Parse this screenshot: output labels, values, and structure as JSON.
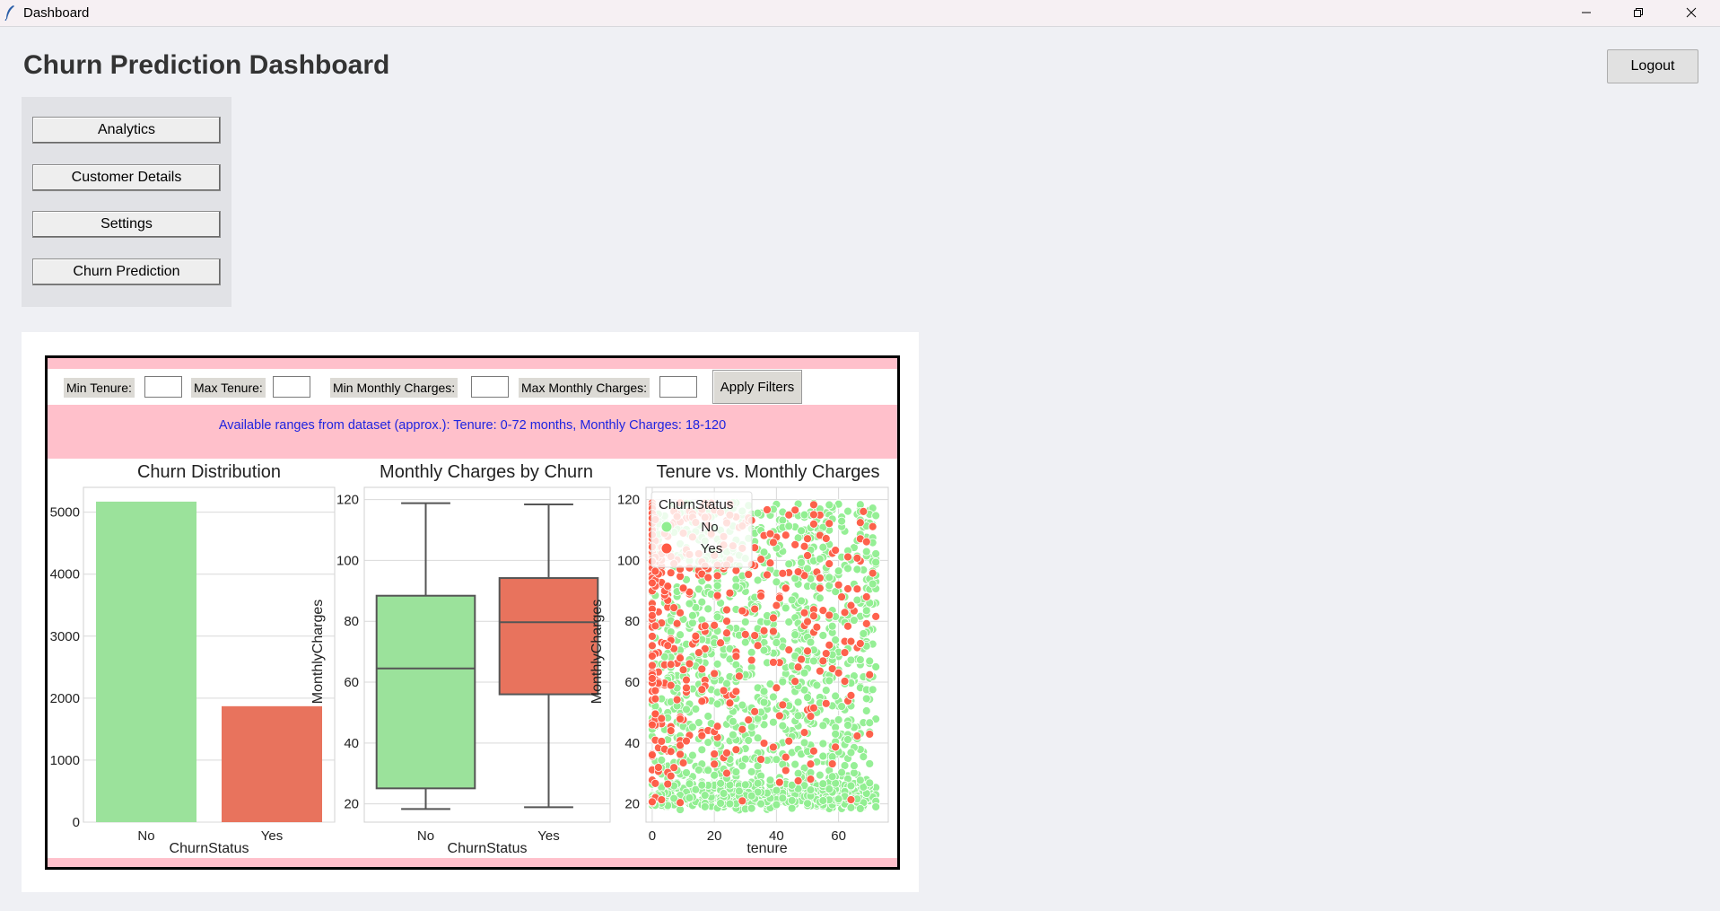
{
  "window": {
    "title": "Dashboard",
    "controls": [
      "minimize-icon",
      "restore-icon",
      "close-icon"
    ]
  },
  "header": {
    "title": "Churn Prediction Dashboard",
    "logout_label": "Logout"
  },
  "nav": {
    "items": [
      {
        "label": "Analytics"
      },
      {
        "label": "Customer Details"
      },
      {
        "label": "Settings"
      },
      {
        "label": "Churn Prediction"
      }
    ]
  },
  "filters": {
    "min_tenure_label": "Min Tenure:",
    "max_tenure_label": "Max Tenure:",
    "min_charges_label": "Min Monthly Charges:",
    "max_charges_label": "Max Monthly Charges:",
    "min_tenure_value": "",
    "max_tenure_value": "",
    "min_charges_value": "",
    "max_charges_value": "",
    "apply_label": "Apply Filters",
    "hint": "Available ranges from dataset (approx.): Tenure: 0-72 months, Monthly Charges: 18-120"
  },
  "colors": {
    "no": "#9be29b",
    "yes": "#e8735d",
    "scatter_no": "#90ee90",
    "scatter_yes": "#ff5a45",
    "frame_bg": "#ffc0cb",
    "hint_text": "#1f24e0",
    "grid": "#d9d9d9"
  },
  "chart_data": [
    {
      "type": "bar",
      "title": "Churn Distribution",
      "xlabel": "ChurnStatus",
      "ylabel": "",
      "categories": [
        "No",
        "Yes"
      ],
      "values": [
        5170,
        1870
      ],
      "ylim": [
        0,
        5400
      ],
      "yticks": [
        0,
        1000,
        2000,
        3000,
        4000,
        5000
      ],
      "ytick_labels": [
        "0",
        "1000",
        "2000",
        "3000",
        "4000",
        "5000"
      ],
      "grid": true
    },
    {
      "type": "box",
      "title": "Monthly Charges by Churn",
      "xlabel": "ChurnStatus",
      "ylabel": "MonthlyCharges",
      "categories": [
        "No",
        "Yes"
      ],
      "boxes": [
        {
          "name": "No",
          "min": 18.3,
          "q1": 25.1,
          "median": 64.5,
          "q3": 88.4,
          "max": 118.8
        },
        {
          "name": "Yes",
          "min": 18.9,
          "q1": 56.0,
          "median": 79.7,
          "q3": 94.2,
          "max": 118.4
        }
      ],
      "ylim": [
        14,
        124
      ],
      "yticks": [
        20,
        40,
        60,
        80,
        100,
        120
      ],
      "grid": true
    },
    {
      "type": "scatter",
      "title": "Tenure vs. Monthly Charges",
      "xlabel": "tenure",
      "ylabel": "MonthlyCharges",
      "xlim": [
        -2,
        76
      ],
      "ylim": [
        14,
        124
      ],
      "xticks": [
        0,
        20,
        40,
        60
      ],
      "yticks": [
        20,
        40,
        60,
        80,
        100,
        120
      ],
      "legend": {
        "title": "ChurnStatus",
        "entries": [
          "No",
          "Yes"
        ],
        "placement": "upper-left"
      },
      "series": [
        {
          "name": "No"
        },
        {
          "name": "Yes"
        }
      ],
      "grid": true
    }
  ]
}
